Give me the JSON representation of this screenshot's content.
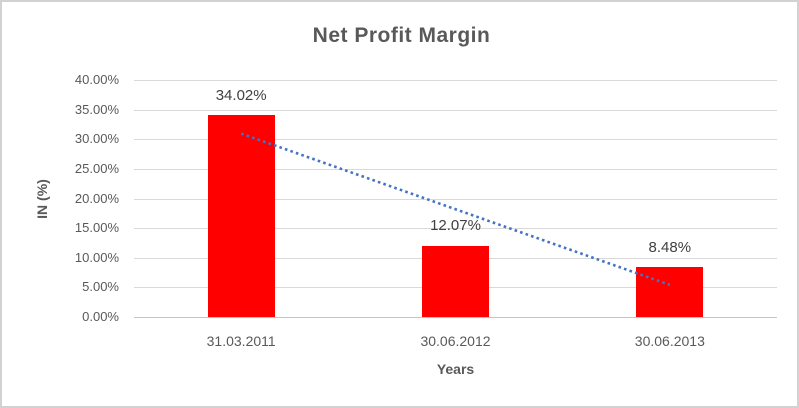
{
  "chart_data": {
    "type": "bar",
    "title": "Net Profit Margin",
    "xlabel": "Years",
    "ylabel": "IN (%)",
    "categories": [
      "31.03.2011",
      "30.06.2012",
      "30.06.2013"
    ],
    "values": [
      34.02,
      12.07,
      8.48
    ],
    "data_labels": [
      "34.02%",
      "12.07%",
      "8.48%"
    ],
    "ylim": [
      0,
      40
    ],
    "yticks": [
      "40.00%",
      "35.00%",
      "30.00%",
      "25.00%",
      "20.00%",
      "15.00%",
      "10.00%",
      "5.00%",
      "0.00%"
    ],
    "grid": true,
    "legend_position": "none",
    "bar_color": "#ff0000",
    "gridline_color": "#d9d9d9",
    "text_color": "#595959",
    "data_label_color": "#404040",
    "trendline": {
      "type": "linear",
      "style": "dotted",
      "color": "#4472c4",
      "start_value": 30.96,
      "end_value": 5.42
    }
  }
}
